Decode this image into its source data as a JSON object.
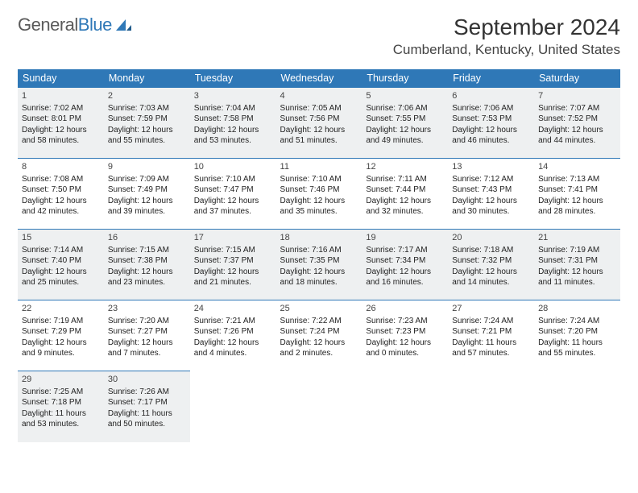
{
  "brand": {
    "text1": "General",
    "text2": "Blue"
  },
  "title": "September 2024",
  "location": "Cumberland, Kentucky, United States",
  "colors": {
    "header_bg": "#2f78b7",
    "header_fg": "#ffffff",
    "row_alt_bg": "#eef0f1",
    "border": "#2f78b7",
    "brand_gray": "#5a5a5a",
    "brand_blue": "#2f78b7"
  },
  "day_headers": [
    "Sunday",
    "Monday",
    "Tuesday",
    "Wednesday",
    "Thursday",
    "Friday",
    "Saturday"
  ],
  "weeks": [
    {
      "alt": true,
      "days": [
        {
          "n": "1",
          "sr": "7:02 AM",
          "ss": "8:01 PM",
          "dl": "12 hours and 58 minutes."
        },
        {
          "n": "2",
          "sr": "7:03 AM",
          "ss": "7:59 PM",
          "dl": "12 hours and 55 minutes."
        },
        {
          "n": "3",
          "sr": "7:04 AM",
          "ss": "7:58 PM",
          "dl": "12 hours and 53 minutes."
        },
        {
          "n": "4",
          "sr": "7:05 AM",
          "ss": "7:56 PM",
          "dl": "12 hours and 51 minutes."
        },
        {
          "n": "5",
          "sr": "7:06 AM",
          "ss": "7:55 PM",
          "dl": "12 hours and 49 minutes."
        },
        {
          "n": "6",
          "sr": "7:06 AM",
          "ss": "7:53 PM",
          "dl": "12 hours and 46 minutes."
        },
        {
          "n": "7",
          "sr": "7:07 AM",
          "ss": "7:52 PM",
          "dl": "12 hours and 44 minutes."
        }
      ]
    },
    {
      "alt": false,
      "days": [
        {
          "n": "8",
          "sr": "7:08 AM",
          "ss": "7:50 PM",
          "dl": "12 hours and 42 minutes."
        },
        {
          "n": "9",
          "sr": "7:09 AM",
          "ss": "7:49 PM",
          "dl": "12 hours and 39 minutes."
        },
        {
          "n": "10",
          "sr": "7:10 AM",
          "ss": "7:47 PM",
          "dl": "12 hours and 37 minutes."
        },
        {
          "n": "11",
          "sr": "7:10 AM",
          "ss": "7:46 PM",
          "dl": "12 hours and 35 minutes."
        },
        {
          "n": "12",
          "sr": "7:11 AM",
          "ss": "7:44 PM",
          "dl": "12 hours and 32 minutes."
        },
        {
          "n": "13",
          "sr": "7:12 AM",
          "ss": "7:43 PM",
          "dl": "12 hours and 30 minutes."
        },
        {
          "n": "14",
          "sr": "7:13 AM",
          "ss": "7:41 PM",
          "dl": "12 hours and 28 minutes."
        }
      ]
    },
    {
      "alt": true,
      "days": [
        {
          "n": "15",
          "sr": "7:14 AM",
          "ss": "7:40 PM",
          "dl": "12 hours and 25 minutes."
        },
        {
          "n": "16",
          "sr": "7:15 AM",
          "ss": "7:38 PM",
          "dl": "12 hours and 23 minutes."
        },
        {
          "n": "17",
          "sr": "7:15 AM",
          "ss": "7:37 PM",
          "dl": "12 hours and 21 minutes."
        },
        {
          "n": "18",
          "sr": "7:16 AM",
          "ss": "7:35 PM",
          "dl": "12 hours and 18 minutes."
        },
        {
          "n": "19",
          "sr": "7:17 AM",
          "ss": "7:34 PM",
          "dl": "12 hours and 16 minutes."
        },
        {
          "n": "20",
          "sr": "7:18 AM",
          "ss": "7:32 PM",
          "dl": "12 hours and 14 minutes."
        },
        {
          "n": "21",
          "sr": "7:19 AM",
          "ss": "7:31 PM",
          "dl": "12 hours and 11 minutes."
        }
      ]
    },
    {
      "alt": false,
      "days": [
        {
          "n": "22",
          "sr": "7:19 AM",
          "ss": "7:29 PM",
          "dl": "12 hours and 9 minutes."
        },
        {
          "n": "23",
          "sr": "7:20 AM",
          "ss": "7:27 PM",
          "dl": "12 hours and 7 minutes."
        },
        {
          "n": "24",
          "sr": "7:21 AM",
          "ss": "7:26 PM",
          "dl": "12 hours and 4 minutes."
        },
        {
          "n": "25",
          "sr": "7:22 AM",
          "ss": "7:24 PM",
          "dl": "12 hours and 2 minutes."
        },
        {
          "n": "26",
          "sr": "7:23 AM",
          "ss": "7:23 PM",
          "dl": "12 hours and 0 minutes."
        },
        {
          "n": "27",
          "sr": "7:24 AM",
          "ss": "7:21 PM",
          "dl": "11 hours and 57 minutes."
        },
        {
          "n": "28",
          "sr": "7:24 AM",
          "ss": "7:20 PM",
          "dl": "11 hours and 55 minutes."
        }
      ]
    },
    {
      "alt": true,
      "days": [
        {
          "n": "29",
          "sr": "7:25 AM",
          "ss": "7:18 PM",
          "dl": "11 hours and 53 minutes."
        },
        {
          "n": "30",
          "sr": "7:26 AM",
          "ss": "7:17 PM",
          "dl": "11 hours and 50 minutes."
        },
        null,
        null,
        null,
        null,
        null
      ]
    }
  ],
  "labels": {
    "sunrise": "Sunrise:",
    "sunset": "Sunset:",
    "daylight": "Daylight:"
  }
}
